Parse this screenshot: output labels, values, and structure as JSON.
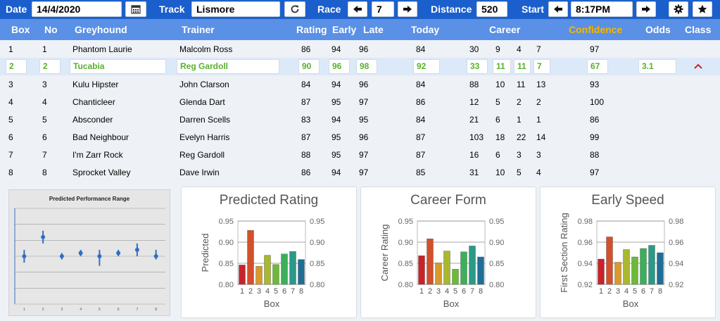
{
  "toolbar": {
    "date_label": "Date",
    "date_value": "14/4/2020",
    "calendar_icon": "calendar-icon",
    "track_label": "Track",
    "track_value": "Lismore",
    "refresh_icon": "refresh-icon",
    "race_label": "Race",
    "race_value": "7",
    "prev_race_icon": "arrow-left-icon",
    "next_race_icon": "arrow-right-icon",
    "distance_label": "Distance",
    "distance_value": "520",
    "start_label": "Start",
    "start_value": "8:17PM",
    "prev_start_icon": "arrow-left-icon",
    "next_start_icon": "arrow-right-icon",
    "settings_icon": "gear-icon",
    "favorite_icon": "star-icon"
  },
  "table": {
    "headers": {
      "box": "Box",
      "no": "No",
      "greyhound": "Greyhound",
      "trainer": "Trainer",
      "rating": "Rating",
      "early": "Early",
      "late": "Late",
      "today": "Today",
      "career": "Career",
      "confidence": "Confidence",
      "odds": "Odds",
      "class": "Class"
    },
    "confidence_color": "#f5b700",
    "selected_color": "#59b02c",
    "rows": [
      {
        "box": "1",
        "no": "1",
        "greyhound": "Phantom Laurie",
        "trainer": "Malcolm Ross",
        "rating": "86",
        "early": "94",
        "late": "96",
        "today": "84",
        "c1": "30",
        "c2": "9",
        "c3": "4",
        "c4": "7",
        "confidence": "97",
        "odds": ""
      },
      {
        "box": "2",
        "no": "2",
        "greyhound": "Tucabia",
        "trainer": "Reg Gardoll",
        "rating": "90",
        "early": "96",
        "late": "98",
        "today": "92",
        "c1": "33",
        "c2": "11",
        "c3": "11",
        "c4": "7",
        "confidence": "67",
        "odds": "3.1"
      },
      {
        "box": "3",
        "no": "3",
        "greyhound": "Kulu Hipster",
        "trainer": "John Clarson",
        "rating": "84",
        "early": "94",
        "late": "96",
        "today": "84",
        "c1": "88",
        "c2": "10",
        "c3": "11",
        "c4": "13",
        "confidence": "93",
        "odds": ""
      },
      {
        "box": "4",
        "no": "4",
        "greyhound": "Chanticleer",
        "trainer": "Glenda Dart",
        "rating": "87",
        "early": "95",
        "late": "97",
        "today": "86",
        "c1": "12",
        "c2": "5",
        "c3": "2",
        "c4": "2",
        "confidence": "100",
        "odds": ""
      },
      {
        "box": "5",
        "no": "5",
        "greyhound": "Absconder",
        "trainer": "Darren Scells",
        "rating": "83",
        "early": "94",
        "late": "95",
        "today": "84",
        "c1": "21",
        "c2": "6",
        "c3": "1",
        "c4": "1",
        "confidence": "86",
        "odds": ""
      },
      {
        "box": "6",
        "no": "6",
        "greyhound": "Bad Neighbour",
        "trainer": "Evelyn Harris",
        "rating": "87",
        "early": "95",
        "late": "96",
        "today": "87",
        "c1": "103",
        "c2": "18",
        "c3": "22",
        "c4": "14",
        "confidence": "99",
        "odds": ""
      },
      {
        "box": "7",
        "no": "7",
        "greyhound": "I'm Zarr Rock",
        "trainer": "Reg Gardoll",
        "rating": "88",
        "early": "95",
        "late": "97",
        "today": "87",
        "c1": "16",
        "c2": "6",
        "c3": "3",
        "c4": "3",
        "confidence": "88",
        "odds": ""
      },
      {
        "box": "8",
        "no": "8",
        "greyhound": "Sprocket Valley",
        "trainer": "Dave Irwin",
        "rating": "86",
        "early": "94",
        "late": "97",
        "today": "85",
        "c1": "31",
        "c2": "10",
        "c3": "5",
        "c4": "4",
        "confidence": "97",
        "odds": ""
      }
    ],
    "collapse_icon": "chevron-up-icon"
  },
  "chart_data": [
    {
      "type": "scatter",
      "title": "Predicted Performance Range",
      "x": [
        "1",
        "2",
        "3",
        "4",
        "5",
        "6",
        "7",
        "8"
      ],
      "values": [
        0.85,
        0.91,
        0.85,
        0.86,
        0.85,
        0.86,
        0.87,
        0.85
      ],
      "error_low": [
        0.83,
        0.89,
        0.84,
        0.85,
        0.82,
        0.85,
        0.85,
        0.84
      ],
      "error_high": [
        0.87,
        0.93,
        0.86,
        0.87,
        0.87,
        0.87,
        0.89,
        0.87
      ],
      "ylim": [
        0.7,
        1.0
      ],
      "grid": true
    },
    {
      "type": "bar",
      "title": "Predicted Rating",
      "xlabel": "Box",
      "ylabel": "Predicted",
      "categories": [
        "1",
        "2",
        "3",
        "4",
        "5",
        "6",
        "7",
        "8"
      ],
      "values": [
        0.846,
        0.928,
        0.843,
        0.869,
        0.847,
        0.872,
        0.878,
        0.859
      ],
      "ylim": [
        0.8,
        0.95
      ],
      "yticks": [
        "0.95",
        "0.90",
        "0.85",
        "0.80"
      ]
    },
    {
      "type": "bar",
      "title": "Career Form",
      "xlabel": "Box",
      "ylabel": "Career Rating",
      "categories": [
        "1",
        "2",
        "3",
        "4",
        "5",
        "6",
        "7",
        "8"
      ],
      "values": [
        0.868,
        0.908,
        0.851,
        0.879,
        0.836,
        0.877,
        0.891,
        0.865
      ],
      "ylim": [
        0.8,
        0.95
      ],
      "yticks": [
        "0.95",
        "0.90",
        "0.85",
        "0.80"
      ]
    },
    {
      "type": "bar",
      "title": "Early Speed",
      "xlabel": "Box",
      "ylabel": "First Section Rating",
      "categories": [
        "1",
        "2",
        "3",
        "4",
        "5",
        "6",
        "7",
        "8"
      ],
      "values": [
        0.944,
        0.965,
        0.941,
        0.953,
        0.946,
        0.954,
        0.957,
        0.95
      ],
      "ylim": [
        0.92,
        0.98
      ],
      "yticks": [
        "0.98",
        "0.96",
        "0.94",
        "0.92"
      ]
    }
  ],
  "bar_colors": [
    "#c8222a",
    "#d2502a",
    "#d89a2a",
    "#a8b830",
    "#6cbb36",
    "#3caf5a",
    "#2a9a86",
    "#1f6e96"
  ]
}
